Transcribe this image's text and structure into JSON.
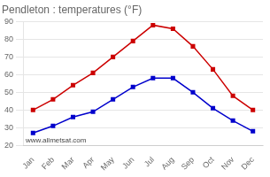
{
  "chart_data": {
    "type": "line",
    "title": "Pendleton : temperatures (°F)",
    "categories": [
      "Jan",
      "Feb",
      "Mar",
      "Apr",
      "May",
      "Jun",
      "Jul",
      "Aug",
      "Sep",
      "Oct",
      "Nov",
      "Dec"
    ],
    "series": [
      {
        "color": "#cc0000",
        "marker": "square",
        "values": [
          40,
          46,
          54,
          61,
          70,
          79,
          88,
          86,
          76,
          63,
          48,
          40
        ]
      },
      {
        "color": "#0000cc",
        "marker": "square",
        "values": [
          27,
          31,
          36,
          39,
          46,
          53,
          58,
          58,
          50,
          41,
          34,
          28
        ]
      }
    ],
    "ylim": [
      20,
      90
    ],
    "yticks": [
      20,
      30,
      40,
      50,
      60,
      70,
      80,
      90
    ],
    "grid": "y",
    "annotation": "www.allmetsat.com"
  }
}
